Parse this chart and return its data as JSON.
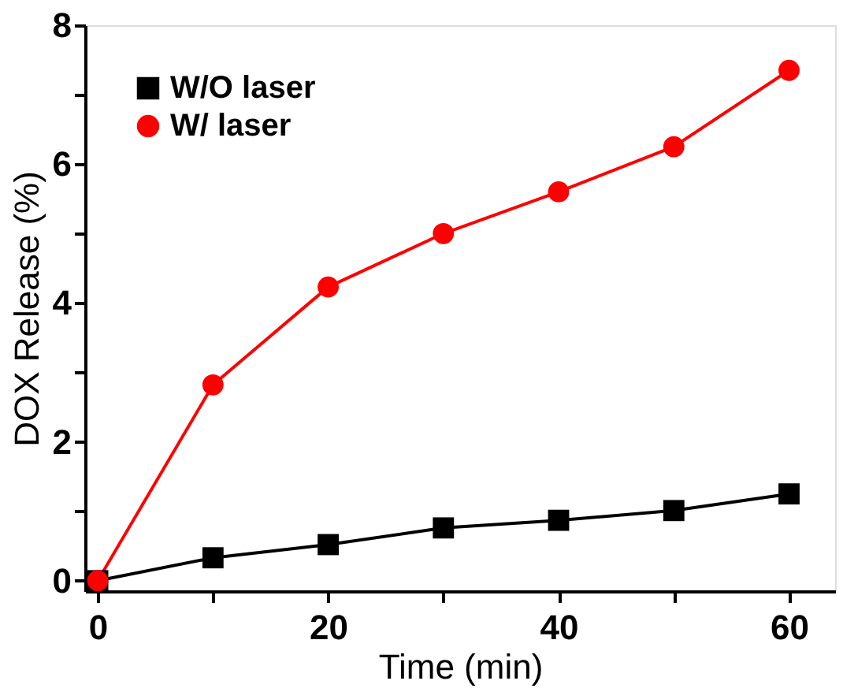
{
  "chart_data": {
    "type": "line",
    "xlabel": "Time (min)",
    "ylabel": "DOX Release (%)",
    "x": [
      0,
      10,
      20,
      30,
      40,
      50,
      60
    ],
    "series": [
      {
        "name": "W/O laser",
        "color": "#000000",
        "marker": "square",
        "values": [
          0,
          0.33,
          0.52,
          0.76,
          0.87,
          1.01,
          1.25
        ]
      },
      {
        "name": "W/ laser",
        "color": "#ff0000",
        "marker": "circle",
        "values": [
          0,
          2.82,
          4.23,
          5.0,
          5.6,
          6.25,
          7.35
        ]
      }
    ],
    "xlim": [
      -1.1,
      64
    ],
    "ylim": [
      -0.15,
      8
    ],
    "xticks": [
      0,
      {
        "value": 10,
        "label": null
      },
      20,
      {
        "value": 30,
        "label": null
      },
      40,
      {
        "value": 50,
        "label": null
      },
      60
    ],
    "yticks": [
      0,
      {
        "value": 1,
        "label": null
      },
      2,
      {
        "value": 3,
        "label": null
      },
      4,
      {
        "value": 5,
        "label": null
      },
      6,
      {
        "value": 7,
        "label": null
      },
      8
    ],
    "grid": false,
    "legend": "top left",
    "line_style": "solid"
  }
}
